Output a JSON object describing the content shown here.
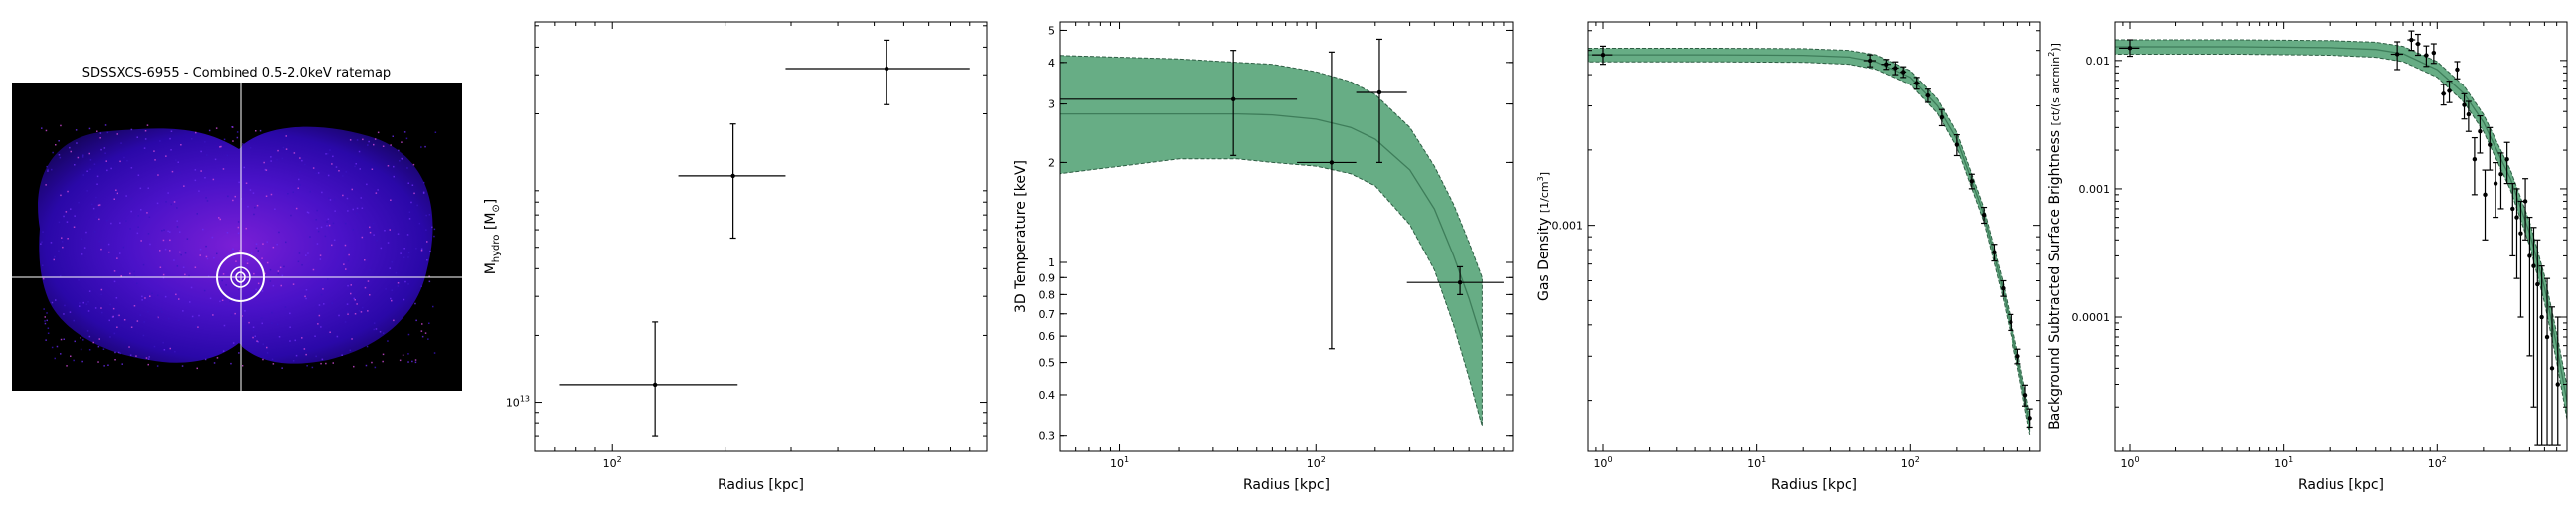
{
  "chart_data": [
    {
      "type": "image",
      "title": "SDSSXCS-6955 - Combined 0.5-2.0keV ratemap"
    },
    {
      "type": "scatter",
      "xlabel": "Radius [kpc]",
      "ylabel": "M_hydro [M☉]",
      "xscale": "log",
      "yscale": "log",
      "xlim": [
        62,
        1000
      ],
      "ylim": [
        6000000000000.0,
        520000000000000.0
      ],
      "xticks": [
        {
          "v": 100,
          "label": "10^2"
        }
      ],
      "yticks": [
        {
          "v": 10000000000000.0,
          "label": "10^13"
        }
      ],
      "points": [
        {
          "x": 130,
          "y": 12000000000000.0,
          "xerr": [
            72,
            216
          ],
          "yerr": [
            7000000000000.0,
            23000000000000.0
          ]
        },
        {
          "x": 210,
          "y": 105000000000000.0,
          "xerr": [
            150,
            290
          ],
          "yerr": [
            55000000000000.0,
            180000000000000.0
          ]
        },
        {
          "x": 540,
          "y": 320000000000000.0,
          "xerr": [
            290,
            900
          ],
          "yerr": [
            220000000000000.0,
            430000000000000.0
          ]
        }
      ],
      "grid": false
    },
    {
      "type": "line",
      "xlabel": "Radius [kpc]",
      "ylabel": "3D Temperature [keV]",
      "xscale": "log",
      "yscale": "log",
      "xlim": [
        5,
        1000
      ],
      "ylim": [
        0.27,
        5.3
      ],
      "xticks": [
        {
          "v": 10,
          "label": "10^1"
        },
        {
          "v": 100,
          "label": "10^2"
        }
      ],
      "yticks": [
        {
          "v": 0.3,
          "label": "0.3"
        },
        {
          "v": 0.4,
          "label": "0.4"
        },
        {
          "v": 0.5,
          "label": "0.5"
        },
        {
          "v": 0.6,
          "label": "0.6"
        },
        {
          "v": 0.7,
          "label": "0.7"
        },
        {
          "v": 0.8,
          "label": "0.8"
        },
        {
          "v": 0.9,
          "label": "0.9"
        },
        {
          "v": 1,
          "label": "1"
        },
        {
          "v": 2,
          "label": "2"
        },
        {
          "v": 3,
          "label": "3"
        },
        {
          "v": 4,
          "label": "4"
        },
        {
          "v": 5,
          "label": "5"
        }
      ],
      "model": {
        "x": [
          5,
          20,
          40,
          60,
          100,
          150,
          200,
          300,
          400,
          500,
          600,
          700
        ],
        "y": [
          2.8,
          2.8,
          2.8,
          2.78,
          2.7,
          2.55,
          2.35,
          1.9,
          1.45,
          1.05,
          0.78,
          0.58
        ],
        "lo": [
          1.85,
          2.05,
          2.05,
          2.0,
          1.95,
          1.85,
          1.7,
          1.3,
          0.95,
          0.65,
          0.45,
          0.32
        ],
        "hi": [
          4.2,
          4.1,
          4.0,
          3.95,
          3.75,
          3.5,
          3.2,
          2.55,
          1.95,
          1.5,
          1.15,
          0.9
        ]
      },
      "points": [
        {
          "x": 38,
          "y": 3.1,
          "xerr": [
            5,
            80
          ],
          "yerr": [
            2.1,
            4.35
          ]
        },
        {
          "x": 120,
          "y": 2.0,
          "xerr": [
            80,
            160
          ],
          "yerr": [
            0.55,
            4.3
          ]
        },
        {
          "x": 210,
          "y": 3.25,
          "xerr": [
            160,
            290
          ],
          "yerr": [
            2.0,
            4.7
          ]
        },
        {
          "x": 540,
          "y": 0.87,
          "xerr": [
            290,
            900
          ],
          "yerr": [
            0.8,
            0.97
          ]
        }
      ],
      "grid": false
    },
    {
      "type": "line",
      "xlabel": "Radius [kpc]",
      "ylabel": "Gas Density [1/cm³]",
      "xscale": "log",
      "yscale": "log",
      "xlim": [
        0.8,
        700
      ],
      "ylim": [
        0.000125,
        0.0065
      ],
      "xticks": [
        {
          "v": 1,
          "label": "10^0"
        },
        {
          "v": 10,
          "label": "10^1"
        },
        {
          "v": 100,
          "label": "10^2"
        }
      ],
      "yticks": [
        {
          "v": 0.001,
          "label": "0.001"
        }
      ],
      "model": {
        "x": [
          0.8,
          5,
          20,
          40,
          60,
          100,
          150,
          200,
          300,
          400,
          500,
          600
        ],
        "y": [
          0.0048,
          0.0048,
          0.00478,
          0.0047,
          0.0045,
          0.0039,
          0.003,
          0.0022,
          0.0011,
          0.00055,
          0.00029,
          0.00016
        ],
        "lo": [
          0.0045,
          0.0045,
          0.00448,
          0.0044,
          0.0042,
          0.00365,
          0.0028,
          0.00205,
          0.00103,
          0.00051,
          0.00027,
          0.000145
        ],
        "hi": [
          0.0051,
          0.0051,
          0.00508,
          0.005,
          0.0048,
          0.00415,
          0.0032,
          0.00235,
          0.00117,
          0.00059,
          0.00031,
          0.000175
        ]
      },
      "points": [
        {
          "x": 1.0,
          "y": 0.0048,
          "xerr": [
            0.85,
            1.15
          ],
          "yerr": [
            0.0044,
            0.0052
          ]
        },
        {
          "x": 55,
          "y": 0.00455,
          "xerr": [
            50,
            60
          ],
          "yerr": [
            0.0043,
            0.0048
          ]
        },
        {
          "x": 70,
          "y": 0.0044,
          "xerr": [
            65,
            75
          ],
          "yerr": [
            0.0042,
            0.0046
          ]
        },
        {
          "x": 80,
          "y": 0.00425,
          "xerr": [
            76,
            84
          ],
          "yerr": [
            0.004,
            0.0045
          ]
        },
        {
          "x": 90,
          "y": 0.0041,
          "xerr": [
            86,
            94
          ],
          "yerr": [
            0.0039,
            0.0043
          ]
        },
        {
          "x": 110,
          "y": 0.0037,
          "xerr": [
            105,
            115
          ],
          "yerr": [
            0.0035,
            0.0039
          ]
        },
        {
          "x": 130,
          "y": 0.0033,
          "xerr": [
            125,
            135
          ],
          "yerr": [
            0.0031,
            0.0035
          ]
        },
        {
          "x": 160,
          "y": 0.0027,
          "xerr": [
            155,
            165
          ],
          "yerr": [
            0.0025,
            0.0029
          ]
        },
        {
          "x": 200,
          "y": 0.0021,
          "xerr": [
            195,
            205
          ],
          "yerr": [
            0.0019,
            0.0023
          ]
        },
        {
          "x": 250,
          "y": 0.0015,
          "xerr": [
            245,
            255
          ],
          "yerr": [
            0.0014,
            0.0016
          ]
        },
        {
          "x": 300,
          "y": 0.0011,
          "xerr": [
            295,
            305
          ],
          "yerr": [
            0.00102,
            0.00118
          ]
        },
        {
          "x": 350,
          "y": 0.00078,
          "xerr": [
            345,
            355
          ],
          "yerr": [
            0.00072,
            0.00084
          ]
        },
        {
          "x": 400,
          "y": 0.00056,
          "xerr": [
            395,
            405
          ],
          "yerr": [
            0.00052,
            0.0006
          ]
        },
        {
          "x": 450,
          "y": 0.00041,
          "xerr": [
            445,
            455
          ],
          "yerr": [
            0.00038,
            0.00044
          ]
        },
        {
          "x": 500,
          "y": 0.0003,
          "xerr": [
            495,
            505
          ],
          "yerr": [
            0.00028,
            0.00032
          ]
        },
        {
          "x": 560,
          "y": 0.00021,
          "xerr": [
            555,
            565
          ],
          "yerr": [
            0.00019,
            0.00023
          ]
        },
        {
          "x": 600,
          "y": 0.00017,
          "xerr": [
            595,
            605
          ],
          "yerr": [
            0.000155,
            0.000185
          ]
        }
      ],
      "grid": false
    },
    {
      "type": "line",
      "xlabel": "Radius [kpc]",
      "ylabel": "Background Subtracted Surface Brightness [ct/(s arcmin²)]",
      "xscale": "log",
      "yscale": "log",
      "xlim": [
        0.8,
        700
      ],
      "ylim": [
        9e-06,
        0.02
      ],
      "xticks": [
        {
          "v": 1,
          "label": "10^0"
        },
        {
          "v": 10,
          "label": "10^1"
        },
        {
          "v": 100,
          "label": "10^2"
        }
      ],
      "yticks": [
        {
          "v": 0.0001,
          "label": "0.0001"
        },
        {
          "v": 0.001,
          "label": "0.001"
        },
        {
          "v": 0.01,
          "label": "0.01"
        }
      ],
      "model": {
        "x": [
          0.8,
          5,
          20,
          40,
          60,
          100,
          150,
          200,
          300,
          400,
          500,
          600,
          700
        ],
        "y": [
          0.0128,
          0.0128,
          0.0126,
          0.0122,
          0.0113,
          0.0085,
          0.0055,
          0.0033,
          0.0012,
          0.00045,
          0.00017,
          6e-05,
          2.2e-05
        ],
        "lo": [
          0.0112,
          0.0112,
          0.011,
          0.0106,
          0.0098,
          0.0074,
          0.0047,
          0.0028,
          0.00098,
          0.00036,
          0.00013,
          4.5e-05,
          1.6e-05
        ],
        "hi": [
          0.0145,
          0.0145,
          0.0143,
          0.0139,
          0.0129,
          0.0098,
          0.0063,
          0.0038,
          0.0014,
          0.00055,
          0.00021,
          7.5e-05,
          2.9e-05
        ]
      },
      "points": [
        {
          "x": 1.0,
          "y": 0.0125,
          "xerr": [
            0.85,
            1.15
          ],
          "yerr": [
            0.0108,
            0.0145
          ]
        },
        {
          "x": 55,
          "y": 0.0112,
          "xerr": [
            50,
            60
          ],
          "yerr": [
            0.0085,
            0.014
          ]
        },
        {
          "x": 68,
          "y": 0.0145,
          "xerr": [
            64,
            72
          ],
          "yerr": [
            0.012,
            0.017
          ]
        },
        {
          "x": 75,
          "y": 0.0135,
          "xerr": [
            72,
            78
          ],
          "yerr": [
            0.011,
            0.016
          ]
        },
        {
          "x": 85,
          "y": 0.011,
          "xerr": [
            82,
            88
          ],
          "yerr": [
            0.009,
            0.013
          ]
        },
        {
          "x": 95,
          "y": 0.0115,
          "xerr": [
            92,
            98
          ],
          "yerr": [
            0.0095,
            0.0135
          ]
        },
        {
          "x": 110,
          "y": 0.0055,
          "xerr": [
            106,
            114
          ],
          "yerr": [
            0.0045,
            0.0065
          ]
        },
        {
          "x": 120,
          "y": 0.0058,
          "xerr": [
            116,
            124
          ],
          "yerr": [
            0.0047,
            0.0069
          ]
        },
        {
          "x": 135,
          "y": 0.0085,
          "xerr": [
            131,
            139
          ],
          "yerr": [
            0.0072,
            0.0098
          ]
        },
        {
          "x": 150,
          "y": 0.0045,
          "xerr": [
            146,
            154
          ],
          "yerr": [
            0.0035,
            0.0055
          ]
        },
        {
          "x": 160,
          "y": 0.0038,
          "xerr": [
            156,
            164
          ],
          "yerr": [
            0.0028,
            0.0048
          ]
        },
        {
          "x": 175,
          "y": 0.0017,
          "xerr": [
            171,
            179
          ],
          "yerr": [
            0.0009,
            0.0025
          ]
        },
        {
          "x": 190,
          "y": 0.0028,
          "xerr": [
            186,
            194
          ],
          "yerr": [
            0.0019,
            0.0037
          ]
        },
        {
          "x": 205,
          "y": 0.0009,
          "xerr": [
            201,
            209
          ],
          "yerr": [
            0.0004,
            0.0014
          ]
        },
        {
          "x": 220,
          "y": 0.0022,
          "xerr": [
            216,
            224
          ],
          "yerr": [
            0.0014,
            0.003
          ]
        },
        {
          "x": 240,
          "y": 0.0011,
          "xerr": [
            236,
            244
          ],
          "yerr": [
            0.0006,
            0.0016
          ]
        },
        {
          "x": 260,
          "y": 0.0013,
          "xerr": [
            256,
            264
          ],
          "yerr": [
            0.0007,
            0.0019
          ]
        },
        {
          "x": 285,
          "y": 0.0017,
          "xerr": [
            281,
            289
          ],
          "yerr": [
            0.0011,
            0.0023
          ]
        },
        {
          "x": 310,
          "y": 0.0007,
          "xerr": [
            306,
            314
          ],
          "yerr": [
            0.0003,
            0.0011
          ]
        },
        {
          "x": 330,
          "y": 0.0006,
          "xerr": [
            326,
            334
          ],
          "yerr": [
            0.0002,
            0.001
          ]
        },
        {
          "x": 350,
          "y": 0.00045,
          "xerr": [
            346,
            354
          ],
          "yerr": [
            0.0001,
            0.0008
          ]
        },
        {
          "x": 375,
          "y": 0.0008,
          "xerr": [
            371,
            379
          ],
          "yerr": [
            0.0004,
            0.0012
          ]
        },
        {
          "x": 400,
          "y": 0.0003,
          "xerr": [
            396,
            404
          ],
          "yerr": [
            5e-05,
            0.0006
          ]
        },
        {
          "x": 425,
          "y": 0.00025,
          "xerr": [
            421,
            429
          ],
          "yerr": [
            2e-05,
            0.0005
          ]
        },
        {
          "x": 450,
          "y": 0.00018,
          "xerr": [
            446,
            454
          ],
          "yerr": [
            1e-05,
            0.0004
          ]
        },
        {
          "x": 480,
          "y": 0.0001,
          "xerr": [
            476,
            484
          ],
          "yerr": [
            1e-05,
            0.00025
          ]
        },
        {
          "x": 520,
          "y": 7e-05,
          "xerr": [
            516,
            524
          ],
          "yerr": [
            1e-05,
            0.0002
          ]
        },
        {
          "x": 560,
          "y": 4e-05,
          "xerr": [
            556,
            564
          ],
          "yerr": [
            1e-05,
            0.00012
          ]
        },
        {
          "x": 610,
          "y": 3e-05,
          "xerr": [
            606,
            614
          ],
          "yerr": [
            1e-05,
            0.0001
          ]
        }
      ],
      "grid": false
    }
  ],
  "colors": {
    "band_fill": "#67ad85",
    "band_edge": "#2f5f45",
    "model_line": "#3e7d5a",
    "points": "#000000",
    "image_bg": "#000000",
    "crosshair": "#ffffff"
  }
}
